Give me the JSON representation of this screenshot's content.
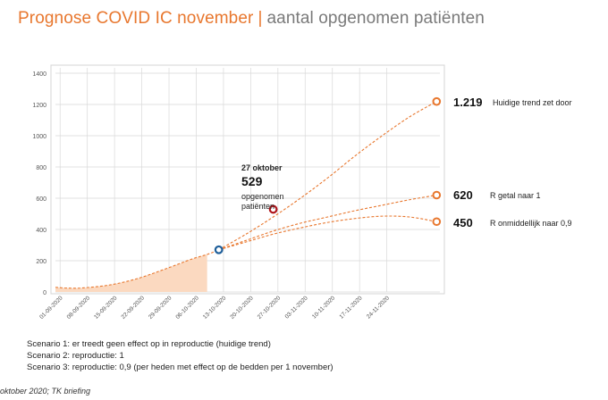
{
  "header": {
    "title": "Prognose COVID IC november",
    "separator": "|",
    "subtitle": "aantal opgenomen patiënten"
  },
  "colors": {
    "accent": "#e8772e",
    "area_fill": "#fbd9c0",
    "current_marker": "#1f5f9a",
    "actual_marker": "#b0151b",
    "grid": "#d9d9d9"
  },
  "chart_data": {
    "type": "line",
    "ylim": [
      0,
      1400
    ],
    "yticks": [
      0,
      200,
      400,
      600,
      800,
      1000,
      1200,
      1400
    ],
    "x_tick_labels": [
      "01-09-2020",
      "08-09-2020",
      "15-09-2020",
      "22-09-2020",
      "29-09-2020",
      "06-10-2020",
      "13-10-2020",
      "20-10-2020",
      "27-10-2020",
      "03-11-2020",
      "10-11-2020",
      "17-11-2020",
      "24-11-2020"
    ],
    "history": {
      "name": "Opgenomen patiënten",
      "x_days": [
        0,
        3,
        7,
        14,
        21,
        28,
        35,
        39
      ],
      "values": [
        30,
        25,
        26,
        45,
        85,
        145,
        210,
        240
      ]
    },
    "current_point": {
      "x_days": 42,
      "value": 270
    },
    "series": [
      {
        "name": "Scenario 1",
        "x_days": [
          42,
          49,
          56,
          63,
          70,
          77,
          84,
          91,
          98
        ],
        "values": [
          270,
          370,
          480,
          600,
          730,
          870,
          1000,
          1120,
          1219
        ],
        "end_label": "1.219",
        "description": "Huidige trend zet door"
      },
      {
        "name": "Scenario 2",
        "x_days": [
          42,
          49,
          56,
          63,
          70,
          77,
          84,
          91,
          98
        ],
        "values": [
          270,
          330,
          390,
          440,
          480,
          520,
          555,
          590,
          620
        ],
        "end_label": "620",
        "description": "R getal naar 1"
      },
      {
        "name": "Scenario 3",
        "x_days": [
          42,
          49,
          56,
          63,
          70,
          77,
          84,
          91,
          98
        ],
        "values": [
          270,
          320,
          370,
          410,
          445,
          470,
          485,
          480,
          450
        ],
        "end_label": "450",
        "description": "R onmiddellijk naar 0,9"
      }
    ],
    "annotation": {
      "date": "27 oktober",
      "value": "529",
      "text_line1": "opgenomen",
      "text_line2": "patiënten",
      "point": {
        "x_days": 56,
        "value": 529
      }
    }
  },
  "legend": [
    "Scenario 1: er treedt geen effect op in reproductie (huidige trend)",
    "Scenario 2: reproductie: 1",
    "Scenario 3: reproductie: 0,9 (per heden met effect op de bedden per 1 november)"
  ],
  "source": "oktober 2020; TK briefing"
}
